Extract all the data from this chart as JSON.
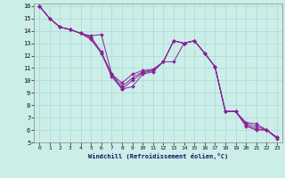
{
  "title": "",
  "xlabel": "Windchill (Refroidissement éolien,°C)",
  "bg_color": "#cceee8",
  "grid_color": "#aad8d4",
  "line_color": "#882299",
  "xlim": [
    -0.5,
    23.5
  ],
  "ylim": [
    5,
    16.2
  ],
  "xticks": [
    0,
    1,
    2,
    3,
    4,
    5,
    6,
    7,
    8,
    9,
    10,
    11,
    12,
    13,
    14,
    15,
    16,
    17,
    18,
    19,
    20,
    21,
    22,
    23
  ],
  "yticks": [
    5,
    6,
    7,
    8,
    9,
    10,
    11,
    12,
    13,
    14,
    15,
    16
  ],
  "series": [
    [
      16.0,
      15.0,
      14.3,
      14.1,
      13.8,
      13.6,
      13.7,
      10.5,
      9.8,
      10.5,
      10.8,
      10.9,
      11.5,
      13.2,
      13.0,
      13.2,
      12.2,
      11.1,
      7.5,
      7.5,
      6.6,
      6.5,
      6.0,
      5.4
    ],
    [
      16.0,
      15.0,
      14.3,
      14.1,
      13.8,
      13.5,
      12.3,
      10.5,
      9.5,
      10.2,
      10.7,
      10.8,
      11.5,
      13.2,
      13.0,
      13.2,
      12.2,
      11.1,
      7.5,
      7.5,
      6.5,
      6.3,
      6.0,
      5.4
    ],
    [
      16.0,
      15.0,
      14.3,
      14.1,
      13.8,
      13.4,
      12.2,
      10.5,
      9.3,
      10.0,
      10.6,
      10.8,
      11.5,
      13.2,
      13.0,
      13.2,
      12.2,
      11.1,
      7.5,
      7.5,
      6.4,
      6.1,
      6.0,
      5.4
    ],
    [
      16.0,
      15.0,
      14.3,
      14.1,
      13.8,
      13.3,
      12.2,
      10.3,
      9.3,
      9.5,
      10.5,
      10.7,
      11.5,
      11.5,
      13.0,
      13.2,
      12.2,
      11.1,
      7.5,
      7.5,
      6.3,
      6.0,
      6.0,
      5.3
    ]
  ]
}
